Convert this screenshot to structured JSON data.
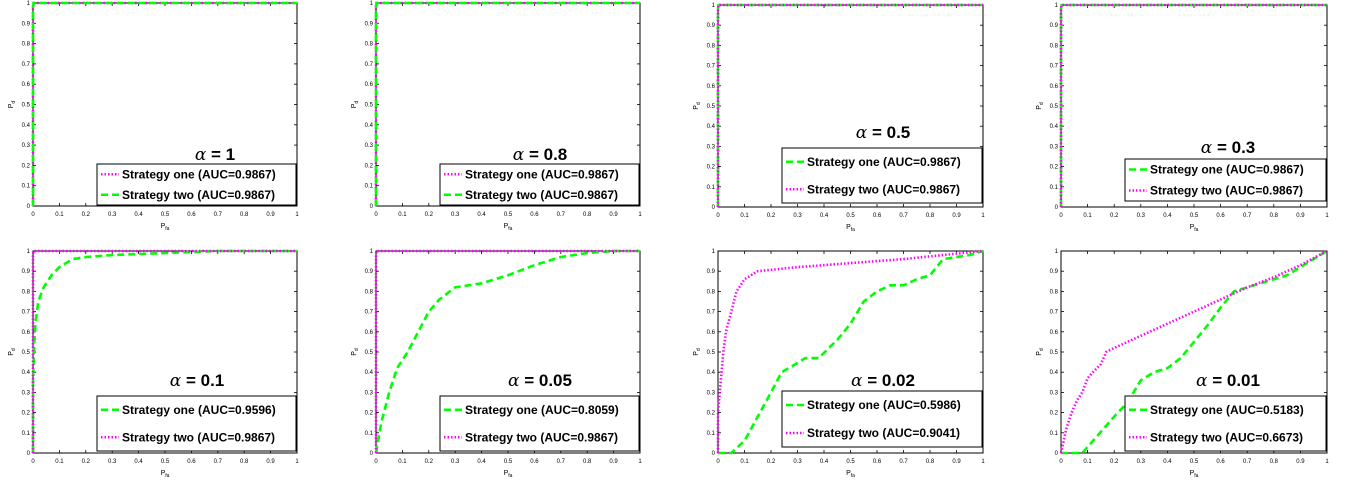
{
  "chart_data": [
    {
      "type": "line",
      "annotation": {
        "symbol": "α",
        "text": " = 1"
      },
      "xlabel": {
        "main": "P",
        "sub": "fa"
      },
      "ylabel": {
        "main": "P",
        "sub": "d"
      },
      "xlim": [
        0,
        1
      ],
      "ylim": [
        0,
        1
      ],
      "xticks": [
        "0",
        "0.1",
        "0.2",
        "0.3",
        "0.4",
        "0.5",
        "0.6",
        "0.7",
        "0.8",
        "0.9",
        "1"
      ],
      "yticks": [
        "0",
        "0.1",
        "0.2",
        "0.3",
        "0.4",
        "0.5",
        "0.6",
        "0.7",
        "0.8",
        "0.9",
        "1"
      ],
      "legend_position": "bottom-right",
      "series": [
        {
          "name": "Strategy one (AUC=0.9867)",
          "style": "dotted",
          "color": "#ff00ff",
          "points": [
            [
              0,
              0
            ],
            [
              0,
              0.98
            ],
            [
              0.002,
              1
            ],
            [
              1,
              1
            ]
          ]
        },
        {
          "name": "Strategy two (AUC=0.9867)",
          "style": "dashed",
          "color": "#00ff00",
          "points": [
            [
              0,
              0
            ],
            [
              0,
              0.98
            ],
            [
              0.002,
              1
            ],
            [
              1,
              1
            ]
          ]
        }
      ]
    },
    {
      "type": "line",
      "annotation": {
        "symbol": "α",
        "text": " = 0.8"
      },
      "xlabel": {
        "main": "P",
        "sub": "fa"
      },
      "ylabel": {
        "main": "P",
        "sub": "d"
      },
      "xlim": [
        0,
        1
      ],
      "ylim": [
        0,
        1
      ],
      "xticks": [
        "0",
        "0.1",
        "0.2",
        "0.3",
        "0.4",
        "0.5",
        "0.6",
        "0.7",
        "0.8",
        "0.9",
        "1"
      ],
      "yticks": [
        "0",
        "0.1",
        "0.2",
        "0.3",
        "0.4",
        "0.5",
        "0.6",
        "0.7",
        "0.8",
        "0.9",
        "1"
      ],
      "legend_position": "bottom-right",
      "series": [
        {
          "name": "Strategy one (AUC=0.9867)",
          "style": "dotted",
          "color": "#ff00ff",
          "points": [
            [
              0,
              0
            ],
            [
              0,
              0.98
            ],
            [
              0.002,
              1
            ],
            [
              1,
              1
            ]
          ]
        },
        {
          "name": "Strategy two (AUC=0.9867)",
          "style": "dashed",
          "color": "#00ff00",
          "points": [
            [
              0,
              0
            ],
            [
              0,
              0.98
            ],
            [
              0.002,
              1
            ],
            [
              1,
              1
            ]
          ]
        }
      ]
    },
    {
      "type": "line",
      "annotation": {
        "symbol": "α",
        "text": " = 0.5"
      },
      "xlabel": {
        "main": "P",
        "sub": "fa"
      },
      "ylabel": {
        "main": "P",
        "sub": "d"
      },
      "xlim": [
        0,
        1
      ],
      "ylim": [
        0,
        1
      ],
      "xticks": [
        "0",
        "0.1",
        "0.2",
        "0.3",
        "0.4",
        "0.5",
        "0.6",
        "0.7",
        "0.8",
        "0.9",
        "1"
      ],
      "yticks": [
        "0",
        "0.1",
        "0.2",
        "0.3",
        "0.4",
        "0.5",
        "0.6",
        "0.7",
        "0.8",
        "0.9",
        "1"
      ],
      "legend_position": "bottom-right",
      "series": [
        {
          "name": "Strategy one (AUC=0.9867)",
          "style": "dashed",
          "color": "#00ff00",
          "points": [
            [
              0,
              0
            ],
            [
              0,
              0.98
            ],
            [
              0.002,
              1
            ],
            [
              1,
              1
            ]
          ]
        },
        {
          "name": "Strategy two (AUC=0.9867)",
          "style": "dotted",
          "color": "#ff00ff",
          "points": [
            [
              0,
              0
            ],
            [
              0,
              0.98
            ],
            [
              0.002,
              1
            ],
            [
              1,
              1
            ]
          ]
        }
      ]
    },
    {
      "type": "line",
      "annotation": {
        "symbol": "α",
        "text": " = 0.3"
      },
      "xlabel": {
        "main": "P",
        "sub": "fa"
      },
      "ylabel": {
        "main": "P",
        "sub": "d"
      },
      "xlim": [
        0,
        1
      ],
      "ylim": [
        0,
        1
      ],
      "xticks": [
        "0",
        "0.1",
        "0.2",
        "0.3",
        "0.4",
        "0.5",
        "0.6",
        "0.7",
        "0.8",
        "0.9",
        "1"
      ],
      "yticks": [
        "0",
        "0.1",
        "0.2",
        "0.3",
        "0.4",
        "0.5",
        "0.6",
        "0.7",
        "0.8",
        "0.9",
        "1"
      ],
      "legend_position": "bottom-right",
      "series": [
        {
          "name": "Strategy one (AUC=0.9867)",
          "style": "dashed",
          "color": "#00ff00",
          "points": [
            [
              0,
              0
            ],
            [
              0,
              0.98
            ],
            [
              0.002,
              1
            ],
            [
              1,
              1
            ]
          ]
        },
        {
          "name": "Strategy two (AUC=0.9867)",
          "style": "dotted",
          "color": "#ff00ff",
          "points": [
            [
              0,
              0
            ],
            [
              0,
              0.98
            ],
            [
              0.002,
              1
            ],
            [
              1,
              1
            ]
          ]
        }
      ]
    },
    {
      "type": "line",
      "annotation": {
        "symbol": "α",
        "text": " = 0.1"
      },
      "xlabel": {
        "main": "P",
        "sub": "fa"
      },
      "ylabel": {
        "main": "P",
        "sub": "d"
      },
      "xlim": [
        0,
        1
      ],
      "ylim": [
        0,
        1
      ],
      "xticks": [
        "0",
        "0.1",
        "0.2",
        "0.3",
        "0.4",
        "0.5",
        "0.6",
        "0.7",
        "0.8",
        "0.9",
        "1"
      ],
      "yticks": [
        "0",
        "0.1",
        "0.2",
        "0.3",
        "0.4",
        "0.5",
        "0.6",
        "0.7",
        "0.8",
        "0.9",
        "1"
      ],
      "legend_position": "bottom-right",
      "series": [
        {
          "name": "Strategy one (AUC=0.9596)",
          "style": "dashed",
          "color": "#00ff00",
          "points": [
            [
              0,
              0
            ],
            [
              0,
              0.35
            ],
            [
              0.005,
              0.55
            ],
            [
              0.01,
              0.65
            ],
            [
              0.02,
              0.75
            ],
            [
              0.04,
              0.82
            ],
            [
              0.07,
              0.88
            ],
            [
              0.1,
              0.92
            ],
            [
              0.15,
              0.96
            ],
            [
              0.2,
              0.97
            ],
            [
              0.3,
              0.98
            ],
            [
              0.5,
              0.99
            ],
            [
              0.7,
              1
            ],
            [
              1,
              1
            ]
          ]
        },
        {
          "name": "Strategy two (AUC=0.9867)",
          "style": "dotted",
          "color": "#ff00ff",
          "points": [
            [
              0,
              0
            ],
            [
              0,
              0.98
            ],
            [
              0.002,
              1
            ],
            [
              1,
              1
            ]
          ]
        }
      ]
    },
    {
      "type": "line",
      "annotation": {
        "symbol": "α",
        "text": " = 0.05"
      },
      "xlabel": {
        "main": "P",
        "sub": "fa"
      },
      "ylabel": {
        "main": "P",
        "sub": "d"
      },
      "xlim": [
        0,
        1
      ],
      "ylim": [
        0,
        1
      ],
      "xticks": [
        "0",
        "0.1",
        "0.2",
        "0.3",
        "0.4",
        "0.5",
        "0.6",
        "0.7",
        "0.8",
        "0.9",
        "1"
      ],
      "yticks": [
        "0",
        "0.1",
        "0.2",
        "0.3",
        "0.4",
        "0.5",
        "0.6",
        "0.7",
        "0.8",
        "0.9",
        "1"
      ],
      "legend_position": "bottom-right",
      "series": [
        {
          "name": "Strategy one (AUC=0.8059)",
          "style": "dashed",
          "color": "#00ff00",
          "points": [
            [
              0,
              0
            ],
            [
              0.02,
              0.15
            ],
            [
              0.05,
              0.3
            ],
            [
              0.08,
              0.42
            ],
            [
              0.12,
              0.5
            ],
            [
              0.16,
              0.6
            ],
            [
              0.2,
              0.7
            ],
            [
              0.24,
              0.76
            ],
            [
              0.3,
              0.82
            ],
            [
              0.4,
              0.84
            ],
            [
              0.5,
              0.88
            ],
            [
              0.6,
              0.93
            ],
            [
              0.7,
              0.97
            ],
            [
              0.8,
              0.99
            ],
            [
              0.9,
              1
            ],
            [
              1,
              1
            ]
          ]
        },
        {
          "name": "Strategy two (AUC=0.9867)",
          "style": "dotted",
          "color": "#ff00ff",
          "points": [
            [
              0,
              0
            ],
            [
              0,
              0.98
            ],
            [
              0.002,
              1
            ],
            [
              1,
              1
            ]
          ]
        }
      ]
    },
    {
      "type": "line",
      "annotation": {
        "symbol": "α",
        "text": " = 0.02"
      },
      "xlabel": {
        "main": "P",
        "sub": "fa"
      },
      "ylabel": {
        "main": "P",
        "sub": "d"
      },
      "xlim": [
        0,
        1
      ],
      "ylim": [
        0,
        1
      ],
      "xticks": [
        "0",
        "0.1",
        "0.2",
        "0.3",
        "0.4",
        "0.5",
        "0.6",
        "0.7",
        "0.8",
        "0.9",
        "1"
      ],
      "yticks": [
        "0",
        "0.1",
        "0.2",
        "0.3",
        "0.4",
        "0.5",
        "0.6",
        "0.7",
        "0.8",
        "0.9",
        "1"
      ],
      "legend_position": "bottom-right",
      "series": [
        {
          "name": "Strategy one (AUC=0.5986)",
          "style": "dashed",
          "color": "#00ff00",
          "points": [
            [
              0,
              0
            ],
            [
              0.05,
              0
            ],
            [
              0.1,
              0.06
            ],
            [
              0.15,
              0.18
            ],
            [
              0.2,
              0.3
            ],
            [
              0.24,
              0.4
            ],
            [
              0.28,
              0.43
            ],
            [
              0.33,
              0.47
            ],
            [
              0.38,
              0.47
            ],
            [
              0.45,
              0.56
            ],
            [
              0.5,
              0.64
            ],
            [
              0.55,
              0.75
            ],
            [
              0.6,
              0.8
            ],
            [
              0.65,
              0.83
            ],
            [
              0.7,
              0.83
            ],
            [
              0.75,
              0.86
            ],
            [
              0.8,
              0.88
            ],
            [
              0.85,
              0.96
            ],
            [
              0.9,
              0.97
            ],
            [
              0.95,
              0.98
            ],
            [
              1,
              1
            ]
          ]
        },
        {
          "name": "Strategy two (AUC=0.9041)",
          "style": "dotted",
          "color": "#ff00ff",
          "points": [
            [
              0,
              0
            ],
            [
              0,
              0.2
            ],
            [
              0.01,
              0.35
            ],
            [
              0.02,
              0.5
            ],
            [
              0.03,
              0.6
            ],
            [
              0.05,
              0.7
            ],
            [
              0.07,
              0.8
            ],
            [
              0.1,
              0.86
            ],
            [
              0.15,
              0.9
            ],
            [
              0.3,
              0.92
            ],
            [
              0.5,
              0.94
            ],
            [
              0.7,
              0.96
            ],
            [
              0.85,
              0.98
            ],
            [
              1,
              1
            ]
          ]
        }
      ]
    },
    {
      "type": "line",
      "annotation": {
        "symbol": "α",
        "text": " = 0.01"
      },
      "xlabel": {
        "main": "P",
        "sub": "fa"
      },
      "ylabel": {
        "main": "P",
        "sub": "d"
      },
      "xlim": [
        0,
        1
      ],
      "ylim": [
        0,
        1
      ],
      "xticks": [
        "0",
        "0.1",
        "0.2",
        "0.3",
        "0.4",
        "0.5",
        "0.6",
        "0.7",
        "0.8",
        "0.9",
        "1"
      ],
      "yticks": [
        "0",
        "0.1",
        "0.2",
        "0.3",
        "0.4",
        "0.5",
        "0.6",
        "0.7",
        "0.8",
        "0.9",
        "1"
      ],
      "legend_position": "bottom-right",
      "series": [
        {
          "name": "Strategy one (AUC=0.5183)",
          "style": "dashed",
          "color": "#00ff00",
          "points": [
            [
              0,
              0
            ],
            [
              0.08,
              0
            ],
            [
              0.12,
              0.06
            ],
            [
              0.16,
              0.12
            ],
            [
              0.2,
              0.18
            ],
            [
              0.25,
              0.25
            ],
            [
              0.3,
              0.36
            ],
            [
              0.35,
              0.4
            ],
            [
              0.4,
              0.42
            ],
            [
              0.45,
              0.47
            ],
            [
              0.5,
              0.55
            ],
            [
              0.55,
              0.63
            ],
            [
              0.6,
              0.72
            ],
            [
              0.65,
              0.8
            ],
            [
              0.7,
              0.82
            ],
            [
              0.75,
              0.84
            ],
            [
              0.8,
              0.86
            ],
            [
              0.85,
              0.88
            ],
            [
              0.9,
              0.92
            ],
            [
              0.95,
              0.96
            ],
            [
              1,
              1
            ]
          ]
        },
        {
          "name": "Strategy two (AUC=0.6673)",
          "style": "dotted",
          "color": "#ff00ff",
          "points": [
            [
              0,
              0
            ],
            [
              0.01,
              0.06
            ],
            [
              0.02,
              0.12
            ],
            [
              0.04,
              0.2
            ],
            [
              0.06,
              0.26
            ],
            [
              0.08,
              0.3
            ],
            [
              0.1,
              0.37
            ],
            [
              0.12,
              0.4
            ],
            [
              0.15,
              0.44
            ],
            [
              0.17,
              0.5
            ],
            [
              0.2,
              0.52
            ],
            [
              0.3,
              0.58
            ],
            [
              0.4,
              0.64
            ],
            [
              0.5,
              0.7
            ],
            [
              0.6,
              0.76
            ],
            [
              0.7,
              0.82
            ],
            [
              0.8,
              0.87
            ],
            [
              0.9,
              0.93
            ],
            [
              1,
              1
            ]
          ]
        }
      ]
    }
  ]
}
